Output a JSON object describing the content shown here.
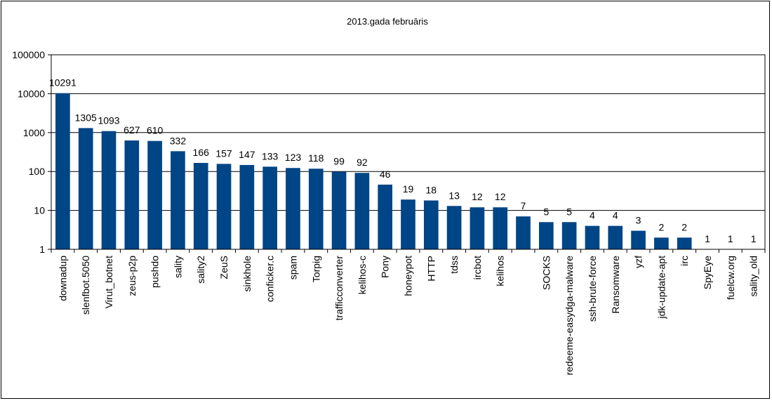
{
  "chart_data": {
    "type": "bar",
    "title": "2013.gada februāris",
    "xlabel": "",
    "ylabel": "",
    "y_scale": "log",
    "ylim": [
      1,
      100000
    ],
    "y_ticks": [
      "1",
      "10",
      "100",
      "1000",
      "10000",
      "100000"
    ],
    "grid": true,
    "legend": "none",
    "bar_color": "#004586",
    "categories": [
      "downadup",
      "slenfbot.5050",
      "Virut_botnet",
      "zeus-p2p",
      "pushdo",
      "sality",
      "sality2",
      "ZeuS",
      "sinkhole",
      "conficker.c",
      "spam",
      "Torpig",
      "trafficconverter",
      "kelihos-c",
      "Pony",
      "honeypot",
      "HTTP",
      "tdss",
      "ircbot",
      "kelihos",
      "",
      "SOCKS",
      "redeeme-easydga-malware",
      "ssh-brute-force",
      "Ransomware",
      "yzf",
      "jdk-update-apt",
      "irc",
      "SpyEye",
      "fuelcw.org",
      "sality_old"
    ],
    "values": [
      10291,
      1305,
      1093,
      627,
      610,
      332,
      166,
      157,
      147,
      133,
      123,
      118,
      99,
      92,
      46,
      19,
      18,
      13,
      12,
      12,
      7,
      5,
      5,
      4,
      4,
      3,
      2,
      2,
      1,
      1,
      1
    ],
    "data_labels": [
      "10291",
      "1305",
      "1093",
      "627",
      "610",
      "332",
      "166",
      "157",
      "147",
      "133",
      "123",
      "118",
      "99",
      "92",
      "46",
      "19",
      "18",
      "13",
      "12",
      "12",
      "7",
      "5",
      "5",
      "4",
      "4",
      "3",
      "2",
      "2",
      "1",
      "1",
      "1"
    ]
  }
}
